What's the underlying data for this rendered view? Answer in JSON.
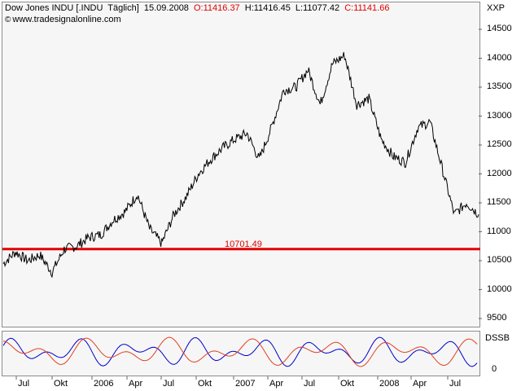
{
  "header": {
    "instrument": "Dow Jones INDU [.INDU",
    "interval": "Täglich]",
    "date": "15.09.2008",
    "open": "O:11416.37",
    "high": "H:11416.45",
    "low": "L:11077.42",
    "close": "C:11141.66"
  },
  "website": "www.tradesignalonline.com",
  "unit_label": "XXP",
  "oscillator_label": "DSSB",
  "colors": {
    "price": "#000000",
    "support": "#e00000",
    "osc_blue": "#0000cc",
    "osc_red": "#e04020",
    "panel": "#f6f6f6"
  },
  "chart_data": {
    "type": "line",
    "ylim": [
      9000,
      14800
    ],
    "yticks": [
      "14500",
      "14000",
      "13500",
      "13000",
      "12500",
      "12000",
      "11500",
      "11000",
      "10500",
      "10000",
      "9500"
    ],
    "xticks": [
      "Jul",
      "Okt",
      "2006",
      "Apr",
      "Jul",
      "Okt",
      "2007",
      "Apr",
      "Jul",
      "Okt",
      "2008",
      "Apr",
      "Jul"
    ],
    "osc_yticks": [
      "0"
    ],
    "x": [
      "2005-06",
      "2005-07",
      "2005-08",
      "2005-09",
      "2005-10",
      "2005-11",
      "2005-12",
      "2006-01",
      "2006-02",
      "2006-03",
      "2006-04",
      "2006-05",
      "2006-06",
      "2006-07",
      "2006-08",
      "2006-09",
      "2006-10",
      "2006-11",
      "2006-12",
      "2007-01",
      "2007-02",
      "2007-03",
      "2007-04",
      "2007-05",
      "2007-06",
      "2007-07",
      "2007-08",
      "2007-09",
      "2007-10",
      "2007-11",
      "2007-12",
      "2008-01",
      "2008-02",
      "2008-03",
      "2008-04",
      "2008-05",
      "2008-06",
      "2008-07",
      "2008-08",
      "2008-09"
    ],
    "series": [
      {
        "values": [
          10450,
          10650,
          10500,
          10600,
          10300,
          10700,
          10750,
          10900,
          10950,
          11200,
          11350,
          11650,
          11050,
          10800,
          11300,
          11600,
          12000,
          12250,
          12450,
          12600,
          12700,
          12250,
          12800,
          13450,
          13500,
          13800,
          13200,
          13900,
          14050,
          13200,
          13300,
          12600,
          12300,
          12200,
          12800,
          12900,
          12100,
          11300,
          11500,
          11300
        ]
      }
    ],
    "support_line": {
      "value": 10701.49,
      "label": "10701.49"
    }
  }
}
